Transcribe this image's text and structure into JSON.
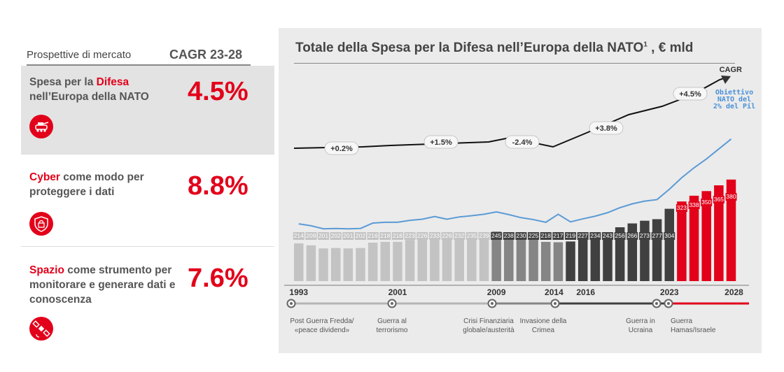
{
  "left_panel": {
    "header_label": "Prospettive di mercato",
    "header_cagr": "CAGR 23-28",
    "items": [
      {
        "prefix": "Spesa per la ",
        "highlight": "Difesa",
        "rest": "nell’Europa della NATO",
        "value": "4.5%",
        "icon": "tank-icon"
      },
      {
        "prefix": "",
        "highlight": "Cyber",
        "rest": " come modo per proteggere i dati",
        "value": "8.8%",
        "icon": "lock-shield-icon"
      },
      {
        "prefix": "",
        "highlight": "Spazio",
        "rest": " come strumento per monitorare e generare dati e conoscenza",
        "value": "7.6%",
        "icon": "satellite-icon"
      }
    ]
  },
  "chart_title": "Totale della Spesa per la Difesa nell’Europa della NATO",
  "chart_title_sup": "1",
  "chart_title_suffix": " , € mld",
  "chart_data": {
    "type": "bar",
    "title": "Totale della Spesa per la Difesa nell’Europa della NATO, € mld",
    "years": [
      1993,
      1994,
      1995,
      1996,
      1997,
      1998,
      1999,
      2000,
      2001,
      2002,
      2003,
      2004,
      2005,
      2006,
      2007,
      2008,
      2009,
      2010,
      2011,
      2012,
      2013,
      2014,
      2015,
      2016,
      2017,
      2018,
      2019,
      2020,
      2021,
      2022,
      2023,
      2024,
      2025,
      2026,
      2027,
      2028
    ],
    "values": [
      214,
      209,
      201,
      202,
      201,
      202,
      216,
      218,
      218,
      223,
      226,
      233,
      226,
      232,
      235,
      239,
      245,
      238,
      230,
      225,
      218,
      217,
      219,
      227,
      234,
      243,
      256,
      266,
      273,
      277,
      304,
      323,
      338,
      350,
      365,
      380
    ],
    "periods": [
      {
        "from": 1993,
        "to": 2008,
        "color": "#c3c3c3"
      },
      {
        "from": 2009,
        "to": 2014,
        "color": "#858585"
      },
      {
        "from": 2015,
        "to": 2023,
        "color": "#404040"
      },
      {
        "from": 2024,
        "to": 2028,
        "color": "#e2001a"
      }
    ],
    "axis_labels": [
      "1993",
      "2001",
      "2009",
      "2014",
      "2016",
      "2023",
      "2028"
    ],
    "nato_target_label": "Obiettivo NATO del 2% del Pil",
    "nato_target_line_color": "#5b9bd5",
    "cagr_label": "CAGR",
    "cagr_segments": [
      {
        "label": "+0.2%"
      },
      {
        "label": "+1.5%"
      },
      {
        "label": "-2.4%"
      },
      {
        "label": "+3.8%"
      },
      {
        "label": "+4.5%"
      }
    ],
    "events": [
      {
        "label": "Post Guerra Fredda/ «peace dividend»"
      },
      {
        "label": "Guerra al terrorismo"
      },
      {
        "label": "Crisi Finanziaria globale/austerità"
      },
      {
        "label": "Invasione della Crimea"
      },
      {
        "label": "Guerra in Ucraina"
      },
      {
        "label": "Guerra Hamas/Israele"
      }
    ]
  }
}
